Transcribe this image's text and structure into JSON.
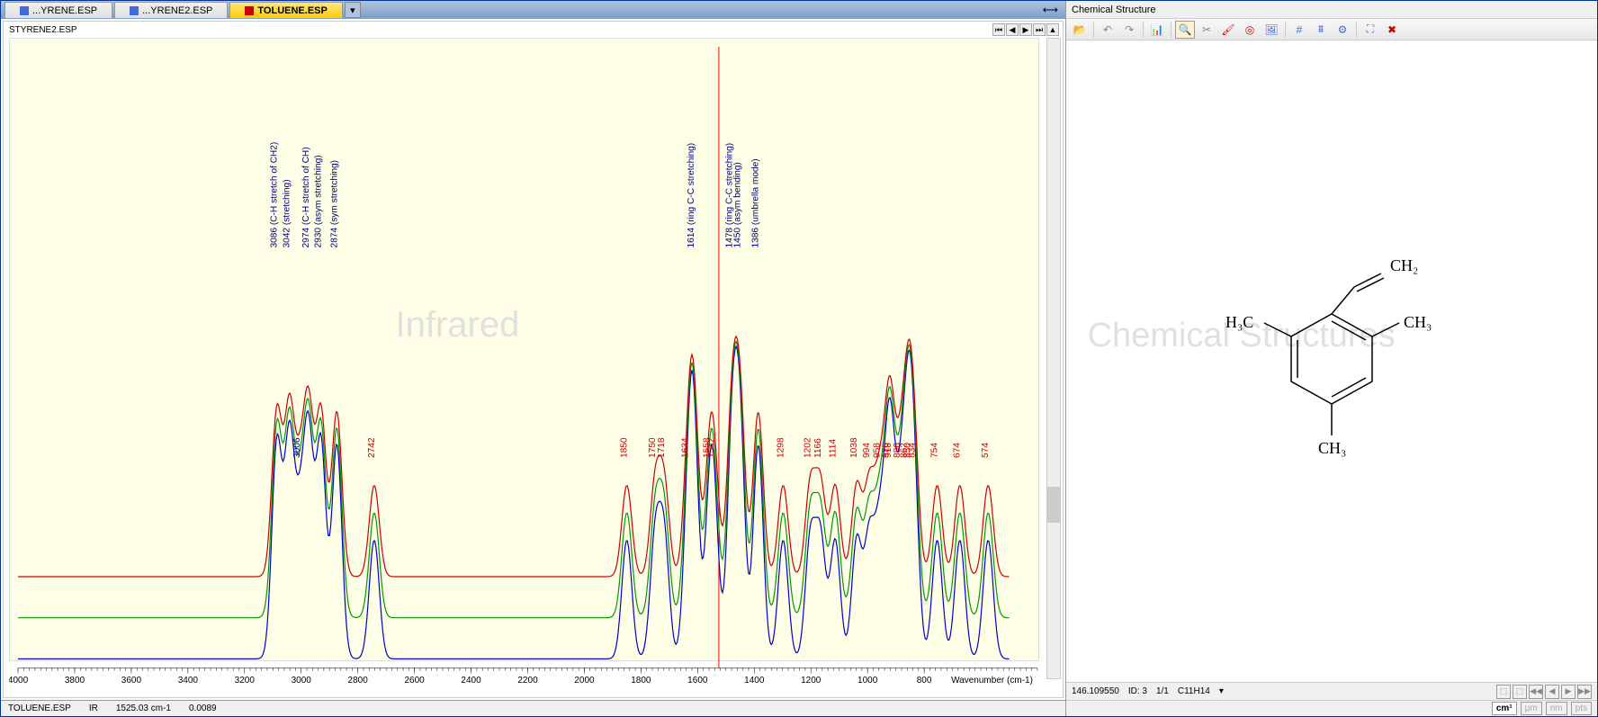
{
  "tabs": [
    {
      "label": "...YRENE.ESP",
      "active": false,
      "iconColor": "#4169e1"
    },
    {
      "label": "...YRENE2.ESP",
      "active": false,
      "iconColor": "#4169e1"
    },
    {
      "label": "TOLUENE.ESP",
      "active": true,
      "iconColor": "#cc0000"
    }
  ],
  "spectrum": {
    "title": "STYRENE2.ESP",
    "watermark": "Infrared",
    "xlabel": "Wavenumber (cm-1)",
    "xmin": 400,
    "xmax": 4000,
    "xticks": [
      4000,
      3800,
      3600,
      3400,
      3200,
      3000,
      2800,
      2600,
      2400,
      2200,
      2000,
      1800,
      1600,
      1400,
      1200,
      1000,
      800
    ],
    "cursor_x": 1525,
    "colors": {
      "trace1": "#cc0000",
      "trace2": "#009900",
      "trace3": "#0000cc",
      "cursor": "#ff0000"
    },
    "peaks": [
      {
        "x": 3086,
        "label": "3086 (C-H stretch of CH2)",
        "color": "#000080"
      },
      {
        "x": 3042,
        "label": "3042 (stretching)",
        "color": "#000080"
      },
      {
        "x": 3006,
        "label": "3006",
        "color": "#000080"
      },
      {
        "x": 2974,
        "label": "2974 (C-H stretch of CH)",
        "color": "#000080"
      },
      {
        "x": 2930,
        "label": "2930 (asym stretching)",
        "color": "#000080"
      },
      {
        "x": 2874,
        "label": "2874 (sym stretching)",
        "color": "#000080"
      },
      {
        "x": 2742,
        "label": "2742",
        "color": "#cc0000"
      },
      {
        "x": 1850,
        "label": "1850",
        "color": "#cc0000"
      },
      {
        "x": 1750,
        "label": "1750",
        "color": "#cc0000"
      },
      {
        "x": 1718,
        "label": "1718",
        "color": "#cc0000"
      },
      {
        "x": 1634,
        "label": "1634",
        "color": "#cc0000"
      },
      {
        "x": 1614,
        "label": "1614 (ring C-C stretching)",
        "color": "#000080"
      },
      {
        "x": 1558,
        "label": "1558",
        "color": "#cc0000"
      },
      {
        "x": 1542,
        "label": "1542",
        "color": "#cc0000"
      },
      {
        "x": 1478,
        "label": "1478 (ring C-C stretching)",
        "color": "#000080"
      },
      {
        "x": 1450,
        "label": "1450 (asym bending)",
        "color": "#000080"
      },
      {
        "x": 1386,
        "label": "1386 (umbrella mode)",
        "color": "#000080"
      },
      {
        "x": 1298,
        "label": "1298",
        "color": "#cc0000"
      },
      {
        "x": 1202,
        "label": "1202",
        "color": "#cc0000"
      },
      {
        "x": 1166,
        "label": "1166",
        "color": "#cc0000"
      },
      {
        "x": 1114,
        "label": "1114",
        "color": "#cc0000"
      },
      {
        "x": 1038,
        "label": "1038",
        "color": "#cc0000"
      },
      {
        "x": 994,
        "label": "994",
        "color": "#cc0000"
      },
      {
        "x": 958,
        "label": "958",
        "color": "#cc0000"
      },
      {
        "x": 926,
        "label": "926",
        "color": "#cc0000"
      },
      {
        "x": 918,
        "label": "918",
        "color": "#cc0000"
      },
      {
        "x": 886,
        "label": "886",
        "color": "#cc0000"
      },
      {
        "x": 862,
        "label": "862",
        "color": "#cc0000"
      },
      {
        "x": 850,
        "label": "850",
        "color": "#cc0000"
      },
      {
        "x": 834,
        "label": "834",
        "color": "#cc0000"
      },
      {
        "x": 754,
        "label": "754",
        "color": "#cc0000"
      },
      {
        "x": 674,
        "label": "674",
        "color": "#cc0000"
      },
      {
        "x": 574,
        "label": "574",
        "color": "#cc0000"
      }
    ]
  },
  "status": {
    "file": "TOLUENE.ESP",
    "mode": "IR",
    "position": "1525.03 cm-1",
    "value": "0.0089"
  },
  "right": {
    "header": "Chemical Structure",
    "watermark": "Chemical Structures",
    "structure": {
      "labels": {
        "top": "CH₂",
        "left": "H₃C",
        "right": "CH₃",
        "bottom": "CH₃"
      }
    },
    "toolbar_icons": [
      {
        "name": "open-icon",
        "glyph": "📂",
        "color": "#d2691e"
      },
      {
        "name": "undo-icon",
        "glyph": "↶",
        "color": "#888"
      },
      {
        "name": "redo-icon",
        "glyph": "↷",
        "color": "#888"
      },
      {
        "name": "chart-icon",
        "glyph": "📊",
        "color": "#4169e1"
      },
      {
        "name": "zoom-icon",
        "glyph": "🔍",
        "color": "#000",
        "highlight": true
      },
      {
        "name": "cut-icon",
        "glyph": "✂",
        "color": "#888"
      },
      {
        "name": "brush-icon",
        "glyph": "🖌",
        "color": "#cc0000"
      },
      {
        "name": "circle-icon",
        "glyph": "◎",
        "color": "#cc0000"
      },
      {
        "name": "image-icon",
        "glyph": "🖼",
        "color": "#4169e1"
      },
      {
        "name": "hash-icon",
        "glyph": "#",
        "color": "#4169e1"
      },
      {
        "name": "doublehash-icon",
        "glyph": "⩩",
        "color": "#4169e1"
      },
      {
        "name": "settings-icon",
        "glyph": "⚙",
        "color": "#4169e1"
      },
      {
        "name": "expand-icon",
        "glyph": "⛶",
        "color": "#4169e1"
      },
      {
        "name": "close-icon",
        "glyph": "✖",
        "color": "#cc0000"
      }
    ],
    "status_line": {
      "mass": "146.109550",
      "id": "ID: 3",
      "index": "1/1",
      "formula": "C11H14"
    },
    "status_icons": [
      {
        "name": "icon-a",
        "glyph": "⬚",
        "color": "#cc6600"
      },
      {
        "name": "icon-b",
        "glyph": "⬚",
        "color": "#cc6600"
      },
      {
        "name": "icon-c",
        "glyph": "◀◀",
        "color": "#888"
      },
      {
        "name": "icon-d",
        "glyph": "◀",
        "color": "#888"
      },
      {
        "name": "icon-e",
        "glyph": "▶",
        "color": "#888"
      },
      {
        "name": "icon-f",
        "glyph": "▶▶",
        "color": "#888"
      }
    ],
    "units": [
      {
        "label": "cm¹",
        "active": true
      },
      {
        "label": "μm",
        "active": false
      },
      {
        "label": "nm",
        "active": false
      },
      {
        "label": "pts",
        "active": false
      }
    ]
  }
}
